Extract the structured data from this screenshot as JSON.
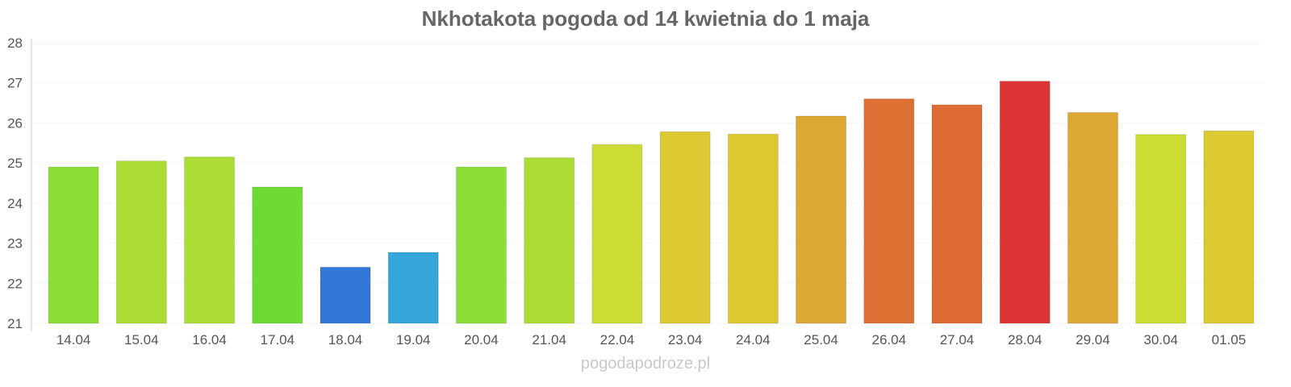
{
  "chart_data": {
    "type": "bar",
    "title": "Nkhotakota pogoda od 14 kwietnia do 1 maja",
    "xlabel": "",
    "ylabel": "",
    "ylim": [
      21,
      28
    ],
    "yticks": [
      "21",
      "22",
      "23",
      "24",
      "25",
      "26",
      "27",
      "28"
    ],
    "grid": true,
    "categories": [
      "14.04",
      "15.04",
      "16.04",
      "17.04",
      "18.04",
      "19.04",
      "20.04",
      "21.04",
      "22.04",
      "23.04",
      "24.04",
      "25.04",
      "26.04",
      "27.04",
      "28.04",
      "29.04",
      "30.04",
      "01.05"
    ],
    "values": [
      24.9,
      25.05,
      25.15,
      24.4,
      22.4,
      22.77,
      24.9,
      25.13,
      25.46,
      25.78,
      25.72,
      26.17,
      26.6,
      26.45,
      27.04,
      26.26,
      25.71,
      25.8
    ],
    "colors": [
      "#8cdd35",
      "#addc35",
      "#addc35",
      "#6dda35",
      "#3377db",
      "#34a6db",
      "#8cdd35",
      "#addc35",
      "#cddc32",
      "#dcc932",
      "#dcc932",
      "#dca733",
      "#dd7033",
      "#dd6b33",
      "#dd3535",
      "#dca733",
      "#cddc32",
      "#dcc932"
    ]
  },
  "footer": "pogodapodroze.pl"
}
